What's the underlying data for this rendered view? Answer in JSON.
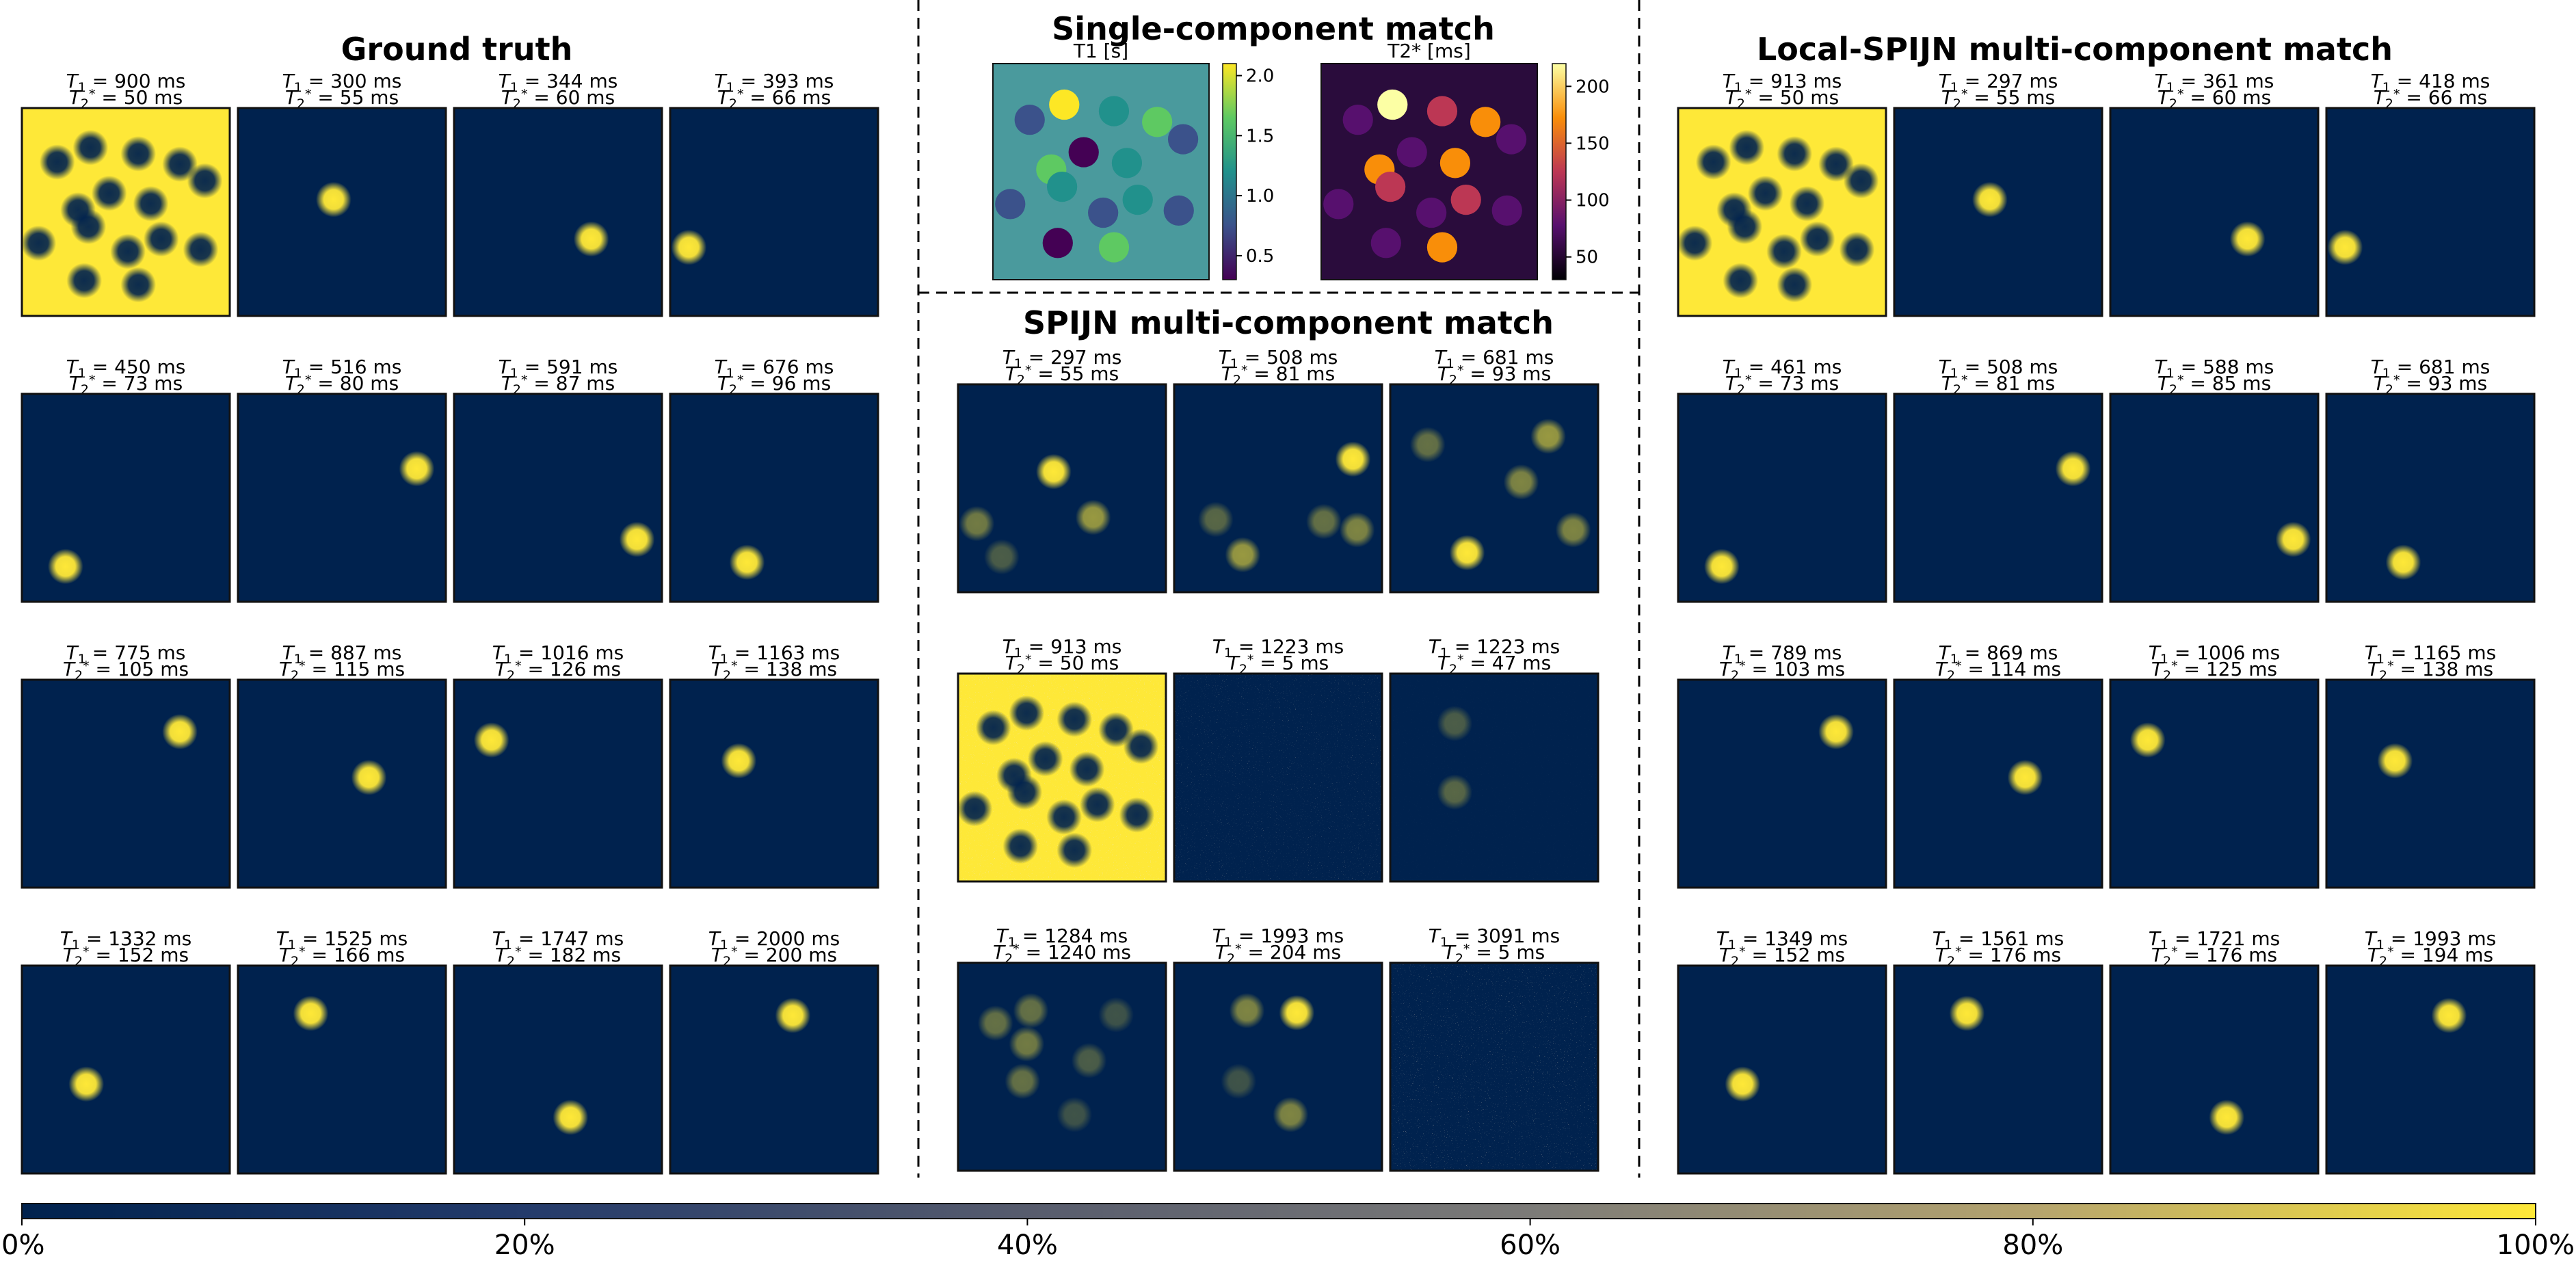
{
  "titles": {
    "ground_truth": "Ground truth",
    "single": "Single-component match",
    "spijn": "SPIJN multi-component match",
    "local": "Local-SPIJN multi-component match"
  },
  "colors": {
    "low": "#00224e",
    "mid": "#7c7b78",
    "high": "#fee838",
    "frame": "#111111"
  },
  "chart_data": [
    {
      "id": "ground_truth",
      "type": "heatmap",
      "title": "Ground truth",
      "rows": 4,
      "cols": 4,
      "panels": [
        {
          "t1": "900",
          "t2": "50",
          "full": 1,
          "blobs": [
            [
              0.17,
              0.26,
              0.95
            ],
            [
              0.33,
              0.19,
              0.95
            ],
            [
              0.56,
              0.22,
              0.95
            ],
            [
              0.76,
              0.27,
              0.95
            ],
            [
              0.88,
              0.35,
              0.95
            ],
            [
              0.27,
              0.49,
              0.95
            ],
            [
              0.42,
              0.41,
              0.95
            ],
            [
              0.62,
              0.46,
              0.95
            ],
            [
              0.08,
              0.65,
              0.95
            ],
            [
              0.32,
              0.57,
              0.95
            ],
            [
              0.67,
              0.63,
              0.95
            ],
            [
              0.51,
              0.69,
              0.95
            ],
            [
              0.3,
              0.83,
              0.95
            ],
            [
              0.56,
              0.85,
              0.95
            ],
            [
              0.86,
              0.68,
              0.95
            ]
          ]
        },
        {
          "t1": "300",
          "t2": "55",
          "blobs": [
            [
              0.46,
              0.44,
              1
            ]
          ]
        },
        {
          "t1": "344",
          "t2": "60",
          "blobs": [
            [
              0.66,
              0.63,
              1
            ]
          ]
        },
        {
          "t1": "393",
          "t2": "66",
          "blobs": [
            [
              0.09,
              0.67,
              1
            ]
          ]
        },
        {
          "t1": "450",
          "t2": "73",
          "blobs": [
            [
              0.21,
              0.83,
              1
            ]
          ]
        },
        {
          "t1": "516",
          "t2": "80",
          "blobs": [
            [
              0.86,
              0.36,
              1
            ]
          ]
        },
        {
          "t1": "591",
          "t2": "87",
          "blobs": [
            [
              0.88,
              0.7,
              1
            ]
          ]
        },
        {
          "t1": "676",
          "t2": "96",
          "blobs": [
            [
              0.37,
              0.81,
              1
            ]
          ]
        },
        {
          "t1": "775",
          "t2": "105",
          "blobs": [
            [
              0.76,
              0.25,
              1
            ]
          ]
        },
        {
          "t1": "887",
          "t2": "115",
          "blobs": [
            [
              0.63,
              0.47,
              1
            ]
          ]
        },
        {
          "t1": "1016",
          "t2": "126",
          "blobs": [
            [
              0.18,
              0.29,
              1
            ]
          ]
        },
        {
          "t1": "1163",
          "t2": "138",
          "blobs": [
            [
              0.33,
              0.39,
              1
            ]
          ]
        },
        {
          "t1": "1332",
          "t2": "152",
          "blobs": [
            [
              0.31,
              0.57,
              1
            ]
          ]
        },
        {
          "t1": "1525",
          "t2": "166",
          "blobs": [
            [
              0.35,
              0.23,
              1
            ]
          ]
        },
        {
          "t1": "1747",
          "t2": "182",
          "blobs": [
            [
              0.56,
              0.73,
              1
            ]
          ]
        },
        {
          "t1": "2000",
          "t2": "200",
          "blobs": [
            [
              0.59,
              0.24,
              1
            ]
          ]
        }
      ]
    },
    {
      "id": "single",
      "type": "heatmap",
      "title": "Single-component match",
      "maps": [
        {
          "label": "T1 [s]",
          "ticks": [
            "2.0",
            "1.5",
            "1.0",
            "0.5"
          ],
          "range": [
            0.3,
            2.1
          ]
        },
        {
          "label": "T2* [ms]",
          "ticks": [
            "200",
            "150",
            "100",
            "50"
          ],
          "range": [
            30,
            220
          ]
        }
      ]
    },
    {
      "id": "spijn",
      "type": "heatmap",
      "title": "SPIJN multi-component match",
      "rows": 3,
      "cols": 3,
      "panels": [
        {
          "t1": "297",
          "t2": "55",
          "blobs": [
            [
              0.46,
              0.42,
              1
            ],
            [
              0.65,
              0.64,
              0.6
            ],
            [
              0.09,
              0.67,
              0.45
            ],
            [
              0.21,
              0.83,
              0.3
            ]
          ]
        },
        {
          "t1": "508",
          "t2": "81",
          "blobs": [
            [
              0.86,
              0.36,
              1
            ],
            [
              0.2,
              0.65,
              0.35
            ],
            [
              0.33,
              0.82,
              0.6
            ],
            [
              0.72,
              0.66,
              0.4
            ],
            [
              0.88,
              0.7,
              0.5
            ]
          ]
        },
        {
          "t1": "681",
          "t2": "93",
          "blobs": [
            [
              0.76,
              0.25,
              0.6
            ],
            [
              0.63,
              0.47,
              0.5
            ],
            [
              0.18,
              0.29,
              0.4
            ],
            [
              0.37,
              0.81,
              1
            ],
            [
              0.88,
              0.7,
              0.5
            ]
          ]
        },
        {
          "t1": "913",
          "t2": "50",
          "full": 1,
          "noise": 1,
          "blobs": [
            [
              0.17,
              0.26,
              0.95
            ],
            [
              0.33,
              0.19,
              0.95
            ],
            [
              0.56,
              0.22,
              0.95
            ],
            [
              0.76,
              0.27,
              0.95
            ],
            [
              0.88,
              0.35,
              0.95
            ],
            [
              0.27,
              0.49,
              0.95
            ],
            [
              0.42,
              0.41,
              0.95
            ],
            [
              0.62,
              0.46,
              0.95
            ],
            [
              0.08,
              0.65,
              0.95
            ],
            [
              0.32,
              0.57,
              0.95
            ],
            [
              0.67,
              0.63,
              0.95
            ],
            [
              0.51,
              0.69,
              0.95
            ],
            [
              0.3,
              0.83,
              0.95
            ],
            [
              0.56,
              0.85,
              0.95
            ],
            [
              0.86,
              0.68,
              0.95
            ]
          ]
        },
        {
          "t1": "1223",
          "t2": "5",
          "noise": 0.4,
          "blobs": []
        },
        {
          "t1": "1223",
          "t2": "47",
          "noise": 0.05,
          "blobs": [
            [
              0.31,
              0.24,
              0.3
            ],
            [
              0.31,
              0.57,
              0.35
            ]
          ]
        },
        {
          "t1": "1284",
          "t2": "1240",
          "blobs": [
            [
              0.18,
              0.29,
              0.4
            ],
            [
              0.35,
              0.23,
              0.4
            ],
            [
              0.33,
              0.39,
              0.45
            ],
            [
              0.31,
              0.57,
              0.4
            ],
            [
              0.63,
              0.47,
              0.3
            ],
            [
              0.76,
              0.25,
              0.25
            ],
            [
              0.56,
              0.73,
              0.25
            ]
          ]
        },
        {
          "t1": "1993",
          "t2": "204",
          "blobs": [
            [
              0.59,
              0.24,
              1
            ],
            [
              0.35,
              0.23,
              0.5
            ],
            [
              0.56,
              0.73,
              0.5
            ],
            [
              0.31,
              0.57,
              0.25
            ]
          ]
        },
        {
          "t1": "3091",
          "t2": "5",
          "noise": 0.6,
          "blobs": []
        }
      ]
    },
    {
      "id": "local",
      "type": "heatmap",
      "title": "Local-SPIJN multi-component match",
      "rows": 4,
      "cols": 4,
      "panels": [
        {
          "t1": "913",
          "t2": "50",
          "full": 1,
          "blobs": [
            [
              0.17,
              0.26,
              0.95
            ],
            [
              0.33,
              0.19,
              0.95
            ],
            [
              0.56,
              0.22,
              0.95
            ],
            [
              0.76,
              0.27,
              0.95
            ],
            [
              0.88,
              0.35,
              0.95
            ],
            [
              0.27,
              0.49,
              0.95
            ],
            [
              0.42,
              0.41,
              0.95
            ],
            [
              0.62,
              0.46,
              0.95
            ],
            [
              0.08,
              0.65,
              0.95
            ],
            [
              0.32,
              0.57,
              0.95
            ],
            [
              0.67,
              0.63,
              0.95
            ],
            [
              0.51,
              0.69,
              0.95
            ],
            [
              0.3,
              0.83,
              0.95
            ],
            [
              0.56,
              0.85,
              0.95
            ],
            [
              0.86,
              0.68,
              0.95
            ]
          ]
        },
        {
          "t1": "297",
          "t2": "55",
          "blobs": [
            [
              0.46,
              0.44,
              1
            ]
          ]
        },
        {
          "t1": "361",
          "t2": "60",
          "blobs": [
            [
              0.66,
              0.63,
              1
            ]
          ]
        },
        {
          "t1": "418",
          "t2": "66",
          "blobs": [
            [
              0.09,
              0.67,
              1
            ]
          ]
        },
        {
          "t1": "461",
          "t2": "73",
          "blobs": [
            [
              0.21,
              0.83,
              1
            ]
          ]
        },
        {
          "t1": "508",
          "t2": "81",
          "blobs": [
            [
              0.86,
              0.36,
              1
            ]
          ]
        },
        {
          "t1": "588",
          "t2": "85",
          "blobs": [
            [
              0.88,
              0.7,
              1
            ]
          ]
        },
        {
          "t1": "681",
          "t2": "93",
          "blobs": [
            [
              0.37,
              0.81,
              1
            ]
          ]
        },
        {
          "t1": "789",
          "t2": "103",
          "blobs": [
            [
              0.76,
              0.25,
              1
            ]
          ]
        },
        {
          "t1": "869",
          "t2": "114",
          "blobs": [
            [
              0.63,
              0.47,
              1
            ]
          ]
        },
        {
          "t1": "1006",
          "t2": "125",
          "blobs": [
            [
              0.18,
              0.29,
              1
            ]
          ]
        },
        {
          "t1": "1165",
          "t2": "138",
          "blobs": [
            [
              0.33,
              0.39,
              1
            ]
          ]
        },
        {
          "t1": "1349",
          "t2": "152",
          "blobs": [
            [
              0.31,
              0.57,
              1
            ]
          ]
        },
        {
          "t1": "1561",
          "t2": "176",
          "blobs": [
            [
              0.35,
              0.23,
              1
            ]
          ]
        },
        {
          "t1": "1721",
          "t2": "176",
          "blobs": [
            [
              0.56,
              0.73,
              1
            ]
          ]
        },
        {
          "t1": "1993",
          "t2": "194",
          "blobs": [
            [
              0.59,
              0.24,
              1
            ]
          ]
        }
      ]
    },
    {
      "id": "colorbar",
      "type": "heatmap",
      "title": "",
      "range": [
        0,
        100
      ],
      "ticks": [
        "0%",
        "20%",
        "40%",
        "60%",
        "80%",
        "100%"
      ]
    }
  ]
}
